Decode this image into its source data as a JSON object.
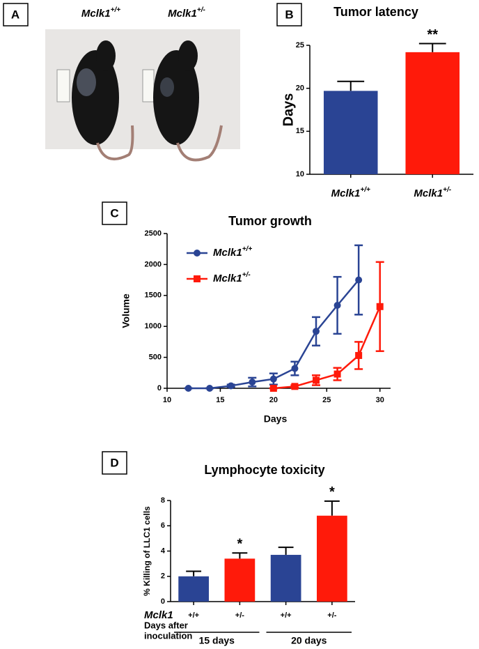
{
  "panel_a": {
    "panel": "A",
    "gene": "Mclk1",
    "genotypes": [
      "+/+",
      "+/-"
    ]
  },
  "chart_data": [
    {
      "type": "bar",
      "panel": "B",
      "title": "Tumor latency",
      "gene": "Mclk1",
      "categories": [
        "+/+",
        "+/-"
      ],
      "values": [
        19.7,
        24.2
      ],
      "errors": [
        1.1,
        1.0
      ],
      "colors": [
        "#2a4494",
        "#ff1a0a"
      ],
      "significance": [
        null,
        "**"
      ],
      "ylabel": "Days",
      "ylim": [
        10,
        25
      ],
      "yticks": [
        10,
        15,
        20,
        25
      ]
    },
    {
      "type": "line",
      "panel": "C",
      "title": "Tumor growth",
      "gene": "Mclk1",
      "xlabel": "Days",
      "ylabel": "Volume",
      "xlim": [
        10,
        31
      ],
      "xticks": [
        10,
        15,
        20,
        25,
        30
      ],
      "ylim": [
        0,
        2500
      ],
      "yticks": [
        0,
        500,
        1000,
        1500,
        2000,
        2500
      ],
      "legend": "upper left",
      "series": [
        {
          "name": "+/+",
          "color": "#2a4494",
          "marker": "circle",
          "x": [
            12,
            14,
            16,
            18,
            20,
            22,
            24,
            26,
            28
          ],
          "values": [
            0,
            0,
            40,
            100,
            150,
            320,
            920,
            1340,
            1750
          ],
          "errors": [
            0,
            0,
            20,
            70,
            90,
            110,
            230,
            460,
            560
          ]
        },
        {
          "name": "+/-",
          "color": "#ff1a0a",
          "marker": "square",
          "x": [
            20,
            22,
            24,
            26,
            28,
            30
          ],
          "values": [
            0,
            30,
            130,
            230,
            530,
            1320
          ],
          "errors": [
            0,
            20,
            80,
            100,
            220,
            720
          ]
        }
      ]
    },
    {
      "type": "bar",
      "panel": "D",
      "title": "Lymphocyte toxicity",
      "gene": "Mclk1",
      "categories": [
        "+/+",
        "+/-",
        "+/+",
        "+/-"
      ],
      "values": [
        2.0,
        3.4,
        3.7,
        6.8
      ],
      "errors": [
        0.4,
        0.45,
        0.6,
        1.15
      ],
      "colors": [
        "#2a4494",
        "#ff1a0a",
        "#2a4494",
        "#ff1a0a"
      ],
      "significance": [
        null,
        "*",
        null,
        "*"
      ],
      "groups": [
        "15 days",
        "20 days"
      ],
      "row_label": [
        "Days after",
        "inoculation"
      ],
      "ylabel": "% Killing of LLC1 cells",
      "ylim": [
        0,
        8
      ],
      "yticks": [
        0,
        2,
        4,
        6,
        8
      ]
    }
  ]
}
